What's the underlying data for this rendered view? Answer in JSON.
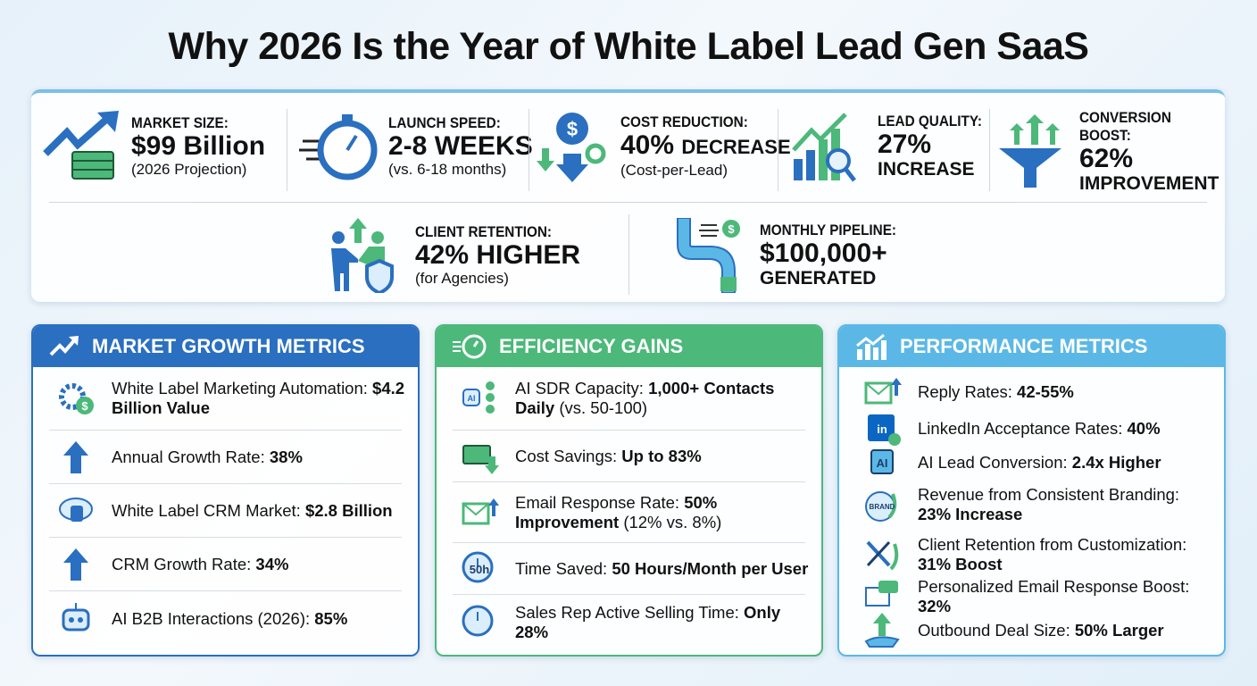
{
  "title": "Why 2026 Is the Year of White Label Lead Gen SaaS",
  "colors": {
    "blue": "#2a6fc0",
    "green": "#4cb87a",
    "light_blue": "#5bb8e6"
  },
  "top_stats": [
    {
      "label": "MARKET SIZE:",
      "value": "$99 Billion",
      "sub": "(2026 Projection)",
      "icon": "trend-arrow-money-icon"
    },
    {
      "label": "LAUNCH SPEED:",
      "value": "2-8 WEEKS",
      "sub": "(vs. 6-18 months)",
      "icon": "stopwatch-icon"
    },
    {
      "label": "COST REDUCTION:",
      "value": "40%",
      "value_suffix": "DECREASE",
      "sub": "(Cost-per-Lead)",
      "icon": "dollar-down-icon"
    },
    {
      "label": "LEAD QUALITY:",
      "value": "27%",
      "sub": "INCREASE",
      "icon": "chart-magnifier-icon"
    },
    {
      "label": "CONVERSION BOOST:",
      "value": "62%",
      "sub": "IMPROVEMENT",
      "icon": "funnel-icon"
    },
    {
      "label": "CLIENT RETENTION:",
      "value": "42% HIGHER",
      "sub": "(for Agencies)",
      "icon": "handshake-shield-icon"
    },
    {
      "label": "MONTHLY PIPELINE:",
      "value": "$100,000+",
      "sub": "GENERATED",
      "icon": "pipeline-icon"
    }
  ],
  "panels": {
    "market": {
      "title": "MARKET GROWTH METRICS",
      "items": [
        {
          "label": "White Label Marketing Automation:",
          "value": "$4.2 Billion Value",
          "icon": "gear-dollar-icon"
        },
        {
          "label": "Annual Growth Rate:",
          "value": "38%",
          "icon": "arrow-up-icon"
        },
        {
          "label": "White Label CRM Market:",
          "value": "$2.8 Billion",
          "icon": "cloud-database-icon"
        },
        {
          "label": "CRM Growth Rate:",
          "value": "34%",
          "icon": "arrow-up-icon"
        },
        {
          "label": "AI B2B Interactions (2026):",
          "value": "85%",
          "icon": "robot-icon"
        }
      ]
    },
    "efficiency": {
      "title": "EFFICIENCY GAINS",
      "items": [
        {
          "label": "AI SDR Capacity:",
          "value": "1,000+ Contacts Daily",
          "suffix": "(vs. 50-100)",
          "icon": "ai-network-icon"
        },
        {
          "label": "Cost Savings:",
          "value": "Up to 83%",
          "icon": "money-down-icon"
        },
        {
          "label": "Email Response Rate:",
          "value": "50% Improvement",
          "suffix": "(12% vs. 8%)",
          "icon": "email-up-icon"
        },
        {
          "label": "Time Saved:",
          "value": "50 Hours/Month per User",
          "icon": "clock-50h-icon",
          "icon_text": "50h"
        },
        {
          "label": "Sales Rep Active Selling Time:",
          "value": "Only 28%",
          "icon": "sales-rep-clock-icon"
        }
      ]
    },
    "performance": {
      "title": "PERFORMANCE METRICS",
      "items": [
        {
          "label": "Reply Rates:",
          "value": "42-55%",
          "icon": "email-chat-icon"
        },
        {
          "label": "LinkedIn Acceptance Rates:",
          "value": "40%",
          "icon": "linkedin-check-icon",
          "icon_text": "in"
        },
        {
          "label": "AI Lead Conversion:",
          "value": "2.4x Higher",
          "icon": "ai-chip-icon",
          "icon_text": "AI"
        },
        {
          "label": "Revenue from Consistent Branding:",
          "value": "23% Increase",
          "icon": "brand-growth-icon",
          "icon_text": "BRAND"
        },
        {
          "label": "Client Retention from Customization:",
          "value": "31% Boost",
          "icon": "tools-growth-icon"
        },
        {
          "label": "Personalized Email Response Boost:",
          "value": "32%",
          "icon": "chat-growth-icon"
        },
        {
          "label": "Outbound Deal Size:",
          "value": "50% Larger",
          "icon": "hand-arrow-icon"
        }
      ]
    }
  }
}
